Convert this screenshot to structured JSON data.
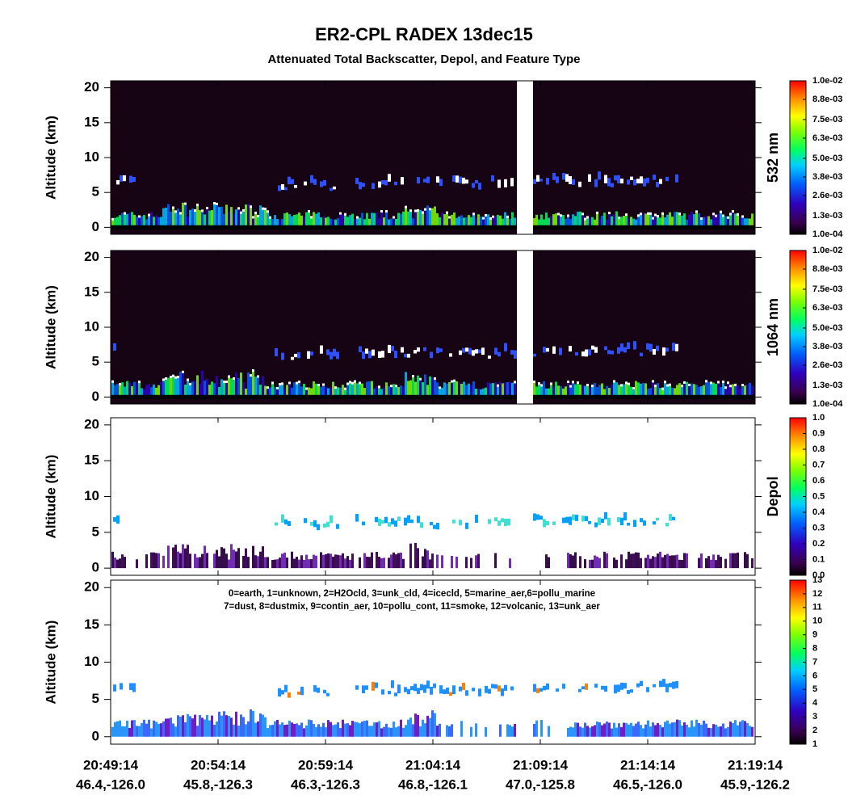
{
  "title": "ER2-CPL RADEX 13dec15",
  "subtitle": "Attenuated Total Backscatter, Depol, and Feature Type",
  "x_axis": {
    "times": [
      "20:49:14",
      "20:54:14",
      "20:59:14",
      "21:04:14",
      "21:09:14",
      "21:14:14",
      "21:19:14"
    ],
    "locations": [
      "46.4,-126.0",
      "45.8,-126.3",
      "46.3,-126.3",
      "46.8,-126.1",
      "47.0,-125.8",
      "46.5,-126.0",
      "45.9,-126.2"
    ]
  },
  "chart_data": [
    {
      "type": "heatmap",
      "y_label": "Altitude (km)",
      "ylim": [
        -1,
        21
      ],
      "yticks": [
        0,
        5,
        10,
        15,
        20
      ],
      "colorbar_label": "532 nm",
      "clim": [
        0.0001,
        0.01
      ],
      "colorbar_ticks": [
        {
          "value": 0.0001,
          "label": "1.0e-04"
        },
        {
          "value": 0.0013,
          "label": "1.3e-03"
        },
        {
          "value": 0.0026,
          "label": "2.6e-03"
        },
        {
          "value": 0.0038,
          "label": "3.8e-03"
        },
        {
          "value": 0.005,
          "label": "5.0e-03"
        },
        {
          "value": 0.0063,
          "label": "6.3e-03"
        },
        {
          "value": 0.0075,
          "label": "7.5e-03"
        },
        {
          "value": 0.0088,
          "label": "8.8e-03"
        },
        {
          "value": 0.01,
          "label": "1.0e-02"
        }
      ]
    },
    {
      "type": "heatmap",
      "y_label": "Altitude (km)",
      "ylim": [
        -1,
        21
      ],
      "yticks": [
        0,
        5,
        10,
        15,
        20
      ],
      "colorbar_label": "1064 nm",
      "clim": [
        0.0001,
        0.01
      ],
      "colorbar_ticks": [
        {
          "value": 0.0001,
          "label": "1.0e-04"
        },
        {
          "value": 0.0013,
          "label": "1.3e-03"
        },
        {
          "value": 0.0026,
          "label": "2.6e-03"
        },
        {
          "value": 0.0038,
          "label": "3.8e-03"
        },
        {
          "value": 0.005,
          "label": "5.0e-03"
        },
        {
          "value": 0.0063,
          "label": "6.3e-03"
        },
        {
          "value": 0.0075,
          "label": "7.5e-03"
        },
        {
          "value": 0.0088,
          "label": "8.8e-03"
        },
        {
          "value": 0.01,
          "label": "1.0e-02"
        }
      ]
    },
    {
      "type": "heatmap",
      "y_label": "Altitude (km)",
      "ylim": [
        -1,
        21
      ],
      "yticks": [
        0,
        5,
        10,
        15,
        20
      ],
      "colorbar_label": "Depol",
      "clim": [
        0,
        1
      ],
      "colorbar_ticks": [
        {
          "value": 0,
          "label": "0.0"
        },
        0.1,
        0.2,
        0.3,
        0.4,
        0.5,
        0.6,
        0.7,
        0.8,
        0.9,
        {
          "value": 1,
          "label": "1.0"
        }
      ]
    },
    {
      "type": "heatmap",
      "y_label": "Altitude (km)",
      "ylim": [
        -1,
        21
      ],
      "yticks": [
        0,
        5,
        10,
        15,
        20
      ],
      "annotations": [
        "0=earth, 1=unknown, 2=H2Ocld, 3=unk_cld, 4=icecld, 5=marine_aer,6=pollu_marine",
        "7=dust, 8=dustmix, 9=contin_aer, 10=pollu_cont, 11=smoke, 12=volcanic, 13=unk_aer"
      ],
      "clim": [
        1,
        13
      ],
      "colorbar_ticks": [
        1,
        2,
        3,
        4,
        5,
        6,
        7,
        8,
        9,
        10,
        11,
        12,
        13
      ]
    }
  ]
}
